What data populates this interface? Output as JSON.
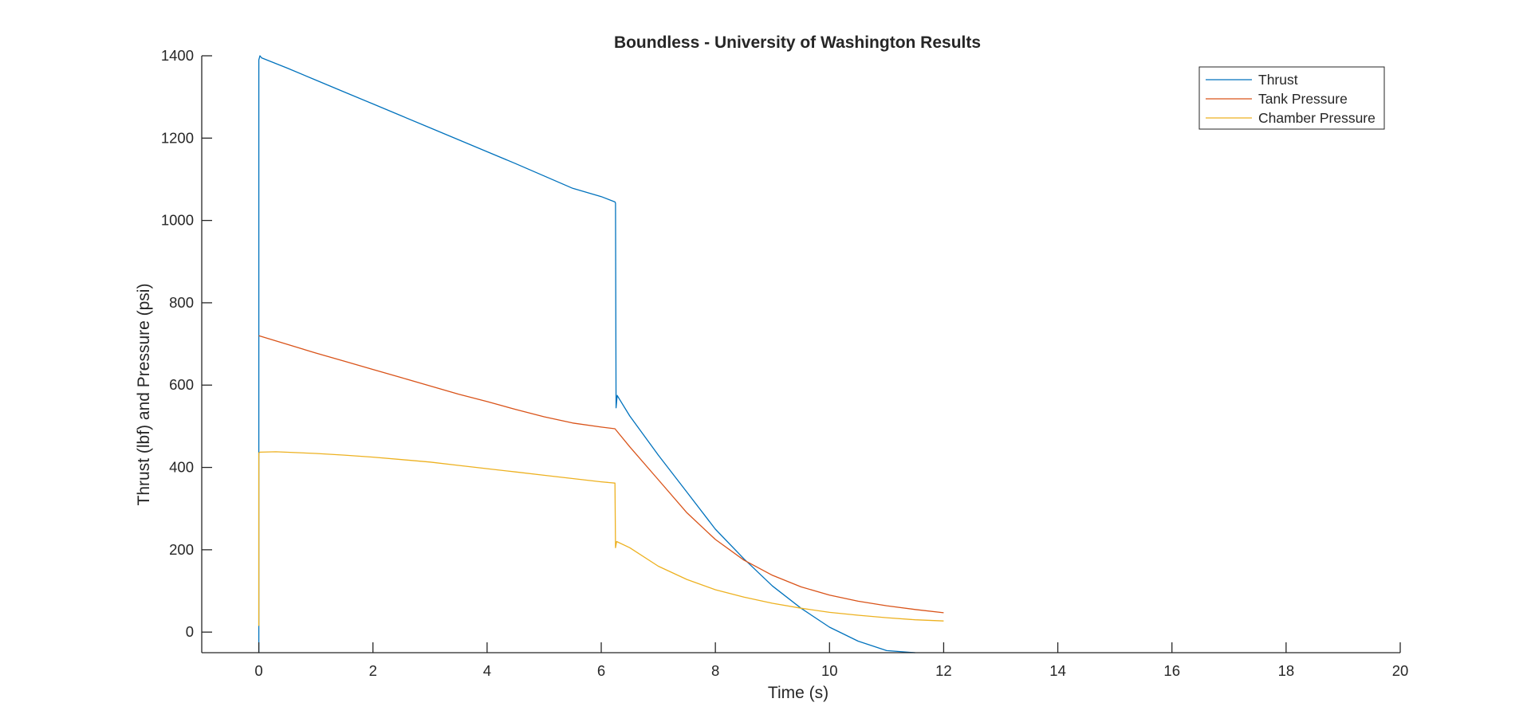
{
  "chart_data": {
    "type": "line",
    "title": "Boundless - University of Washington Results",
    "xlabel": "Time (s)",
    "ylabel": "Thrust (lbf) and Pressure (psi)",
    "xlim": [
      -1,
      20
    ],
    "ylim": [
      -50,
      1400
    ],
    "xticks": [
      0,
      2,
      4,
      6,
      8,
      10,
      12,
      14,
      16,
      18,
      20
    ],
    "yticks": [
      0,
      200,
      400,
      600,
      800,
      1000,
      1200,
      1400
    ],
    "grid": false,
    "legend_position": "top-right",
    "series": [
      {
        "name": "Thrust",
        "color": "#0072BD",
        "x": [
          0,
          0,
          0,
          0.02,
          0.05,
          0.5,
          1,
          1.5,
          2,
          2.5,
          3,
          3.5,
          4,
          4.5,
          5,
          5.5,
          6,
          6.24,
          6.25,
          6.26,
          6.28,
          6.3,
          6.5,
          7,
          7.5,
          8,
          8.5,
          9,
          9.5,
          10,
          10.5,
          11,
          11.5
        ],
        "y": [
          -50,
          20,
          1390,
          1400,
          1395,
          1370,
          1341,
          1312,
          1283,
          1254,
          1225,
          1196,
          1167,
          1138,
          1108,
          1078,
          1058,
          1045,
          1042,
          545,
          575,
          570,
          525,
          430,
          340,
          250,
          178,
          112,
          58,
          12,
          -22,
          -45,
          -50
        ]
      },
      {
        "name": "Tank Pressure",
        "color": "#D95319",
        "x": [
          0,
          0.5,
          1,
          1.5,
          2,
          2.5,
          3,
          3.5,
          4,
          4.5,
          5,
          5.5,
          6,
          6.24,
          6.5,
          7,
          7.5,
          8,
          8.5,
          9,
          9.5,
          10,
          10.5,
          11,
          11.5,
          12
        ],
        "y": [
          720,
          699,
          678,
          658,
          638,
          618,
          598,
          578,
          560,
          541,
          523,
          508,
          498,
          494,
          450,
          370,
          290,
          225,
          175,
          138,
          110,
          90,
          75,
          64,
          55,
          47
        ]
      },
      {
        "name": "Chamber Pressure",
        "color": "#EDB120",
        "x": [
          0,
          0,
          0.02,
          0.3,
          1,
          1.5,
          2,
          2.5,
          3,
          3.5,
          4,
          4.5,
          5,
          5.5,
          6,
          6.24,
          6.25,
          6.27,
          6.5,
          7,
          7.5,
          8,
          8.5,
          9,
          9.5,
          10,
          10.5,
          11,
          11.5,
          12
        ],
        "y": [
          15,
          435,
          437,
          438,
          434,
          430,
          425,
          419,
          413,
          405,
          397,
          389,
          381,
          373,
          365,
          362,
          205,
          220,
          205,
          160,
          128,
          103,
          85,
          70,
          58,
          48,
          41,
          35,
          30,
          27
        ]
      }
    ]
  }
}
